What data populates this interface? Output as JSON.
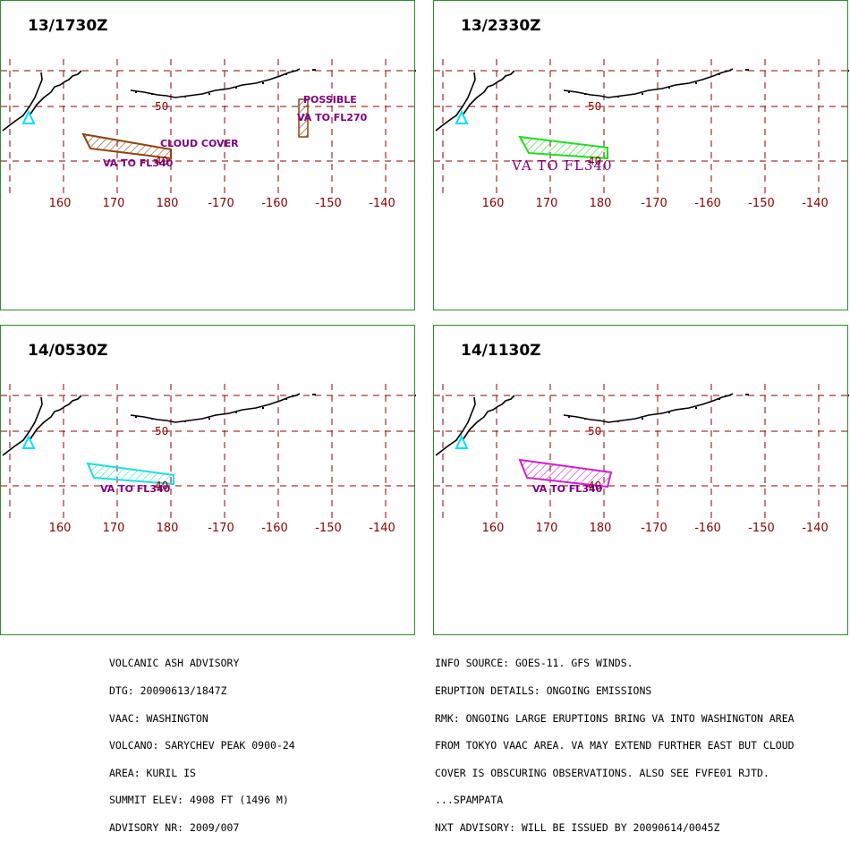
{
  "colors": {
    "grid": "#8b0000",
    "coast": "#000000",
    "volcano": "#00e0ff",
    "text_purple": "#800080",
    "border": "#2e8b2e"
  },
  "lon_labels": [
    "160",
    "170",
    "180",
    "-170",
    "-160",
    "-150",
    "-140"
  ],
  "lat_labels": [
    "50",
    "40"
  ],
  "panels": [
    {
      "time": "13/1730Z",
      "ash_color": "#8b4513",
      "labels": [
        "VA TO FL340",
        "CLOUD COVER",
        "POSSIBLE",
        "VA TO FL270"
      ]
    },
    {
      "time": "13/2330Z",
      "ash_color": "#22dd22",
      "labels": [
        "VA TO FL340"
      ]
    },
    {
      "time": "14/0530Z",
      "ash_color": "#22dddd",
      "labels": [
        "VA TO FL340"
      ]
    },
    {
      "time": "14/1130Z",
      "ash_color": "#cc22cc",
      "labels": [
        "VA TO FL340"
      ]
    }
  ],
  "advisory": {
    "left": [
      "VOLCANIC ASH ADVISORY",
      "DTG: 20090613/1847Z",
      "VAAC: WASHINGTON",
      "VOLCANO: SARYCHEV PEAK 0900-24",
      "AREA: KURIL IS",
      "SUMMIT ELEV: 4908 FT (1496 M)",
      "ADVISORY NR: 2009/007"
    ],
    "right": [
      "INFO SOURCE: GOES-11. GFS WINDS.",
      "ERUPTION DETAILS: ONGOING EMISSIONS",
      "RMK: ONGOING LARGE ERUPTIONS BRING VA INTO WASHINGTON AREA",
      "FROM TOKYO VAAC AREA. VA MAY EXTEND FURTHER EAST BUT CLOUD",
      "COVER IS OBSCURING OBSERVATIONS. ALSO SEE FVFE01 RJTD.",
      "...SPAMPATA",
      "NXT ADVISORY: WILL BE ISSUED BY 20090614/0045Z"
    ]
  }
}
